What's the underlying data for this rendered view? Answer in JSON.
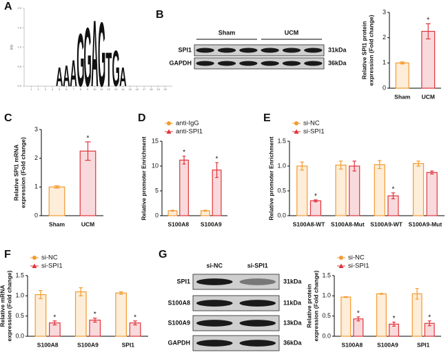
{
  "panel_labels": [
    "A",
    "B",
    "C",
    "D",
    "E",
    "F",
    "G"
  ],
  "blots": [
    {
      "groups": [
        "Sham",
        "UCM"
      ],
      "rows": [
        {
          "name": "SPI1",
          "size": "31kDa"
        },
        {
          "name": "GAPDH",
          "size": "36kDa"
        }
      ]
    },
    {
      "groups": [
        "si-NC",
        "si-SPI1"
      ],
      "rows": [
        {
          "name": "SPI1",
          "size": "31kDa"
        },
        {
          "name": "S100A8",
          "size": "11kDa"
        },
        {
          "name": "S100A9",
          "size": "13kDa"
        },
        {
          "name": "GAPDH",
          "size": "36kDa"
        }
      ]
    }
  ],
  "chart_data": [
    {
      "type": "logo",
      "ylabel": [
        "bits"
      ],
      "x": [
        5,
        6,
        7,
        8,
        9,
        10,
        11,
        12,
        13,
        14
      ],
      "letters": [
        "A",
        "A",
        "A",
        "G",
        "G",
        "A",
        "G",
        "T",
        "G",
        "A"
      ],
      "values": [
        0.5,
        0.55,
        0.7,
        1.4,
        1.55,
        1.75,
        1.7,
        0.9,
        0.95,
        0.5
      ],
      "colors": {
        "A": "#2e9e3b",
        "G": "#f2a81d",
        "T": "#d7272d"
      },
      "xlim": [
        0,
        21
      ],
      "xticks": [
        1,
        2,
        3,
        4,
        5,
        6,
        7,
        8,
        9,
        10,
        11,
        12,
        13,
        14,
        15,
        16,
        17,
        18,
        19,
        20
      ],
      "ylim": [
        0,
        2
      ],
      "yticks": [
        {
          "value": 0,
          "label": "0.0"
        },
        {
          "value": 0.5,
          "label": "0.5"
        },
        {
          "value": 1,
          "label": "1.0"
        },
        {
          "value": 1.5,
          "label": "1.5"
        },
        {
          "value": 2,
          "label": "2.0"
        }
      ]
    },
    {
      "type": "bar",
      "ylabel": [
        "Relative SPI1 protein",
        "expression (Fold change)"
      ],
      "categories": [
        "Sham",
        "UCM"
      ],
      "values": [
        1.0,
        2.25
      ],
      "errors": [
        0.04,
        0.3
      ],
      "annotations": [
        null,
        "*"
      ],
      "colors": [
        "#f39a2e",
        "#e0333b"
      ],
      "ylim": [
        0,
        3
      ],
      "yticks": [
        0,
        1,
        2,
        3
      ]
    },
    {
      "type": "bar",
      "ylabel": [
        "Relative SPI1 mRNA",
        "expression (Fold change)"
      ],
      "categories": [
        "Sham",
        "UCM"
      ],
      "values": [
        1.0,
        2.25
      ],
      "errors": [
        0.04,
        0.32
      ],
      "annotations": [
        null,
        "*"
      ],
      "colors": [
        "#f39a2e",
        "#e0333b"
      ],
      "ylim": [
        0,
        3
      ],
      "yticks": [
        0,
        1,
        2,
        3
      ]
    },
    {
      "type": "bar",
      "ylabel": [
        "Relative promoter Enrichment"
      ],
      "categories": [
        "S100A8",
        "S100A9"
      ],
      "series": [
        {
          "name": "anti-IgG",
          "color": "#f39a2e",
          "values": [
            1.0,
            1.0
          ],
          "errors": [
            0.1,
            0.1
          ],
          "annotations": [
            null,
            null
          ]
        },
        {
          "name": "anti-SPI1",
          "color": "#e0333b",
          "values": [
            11.2,
            9.2
          ],
          "errors": [
            0.8,
            1.5
          ],
          "annotations": [
            "*",
            "*"
          ]
        }
      ],
      "ylim": [
        0,
        15
      ],
      "yticks": [
        0,
        5,
        10,
        15
      ]
    },
    {
      "type": "bar",
      "ylabel": [
        "Relative promoter Enrichment"
      ],
      "categories": [
        "S100A8-WT",
        "S100A8-Mut",
        "S100A9-WT",
        "S100A9-Mut"
      ],
      "series": [
        {
          "name": "si-NC",
          "color": "#f39a2e",
          "values": [
            1.0,
            1.02,
            1.03,
            1.05
          ],
          "errors": [
            0.08,
            0.08,
            0.08,
            0.05
          ],
          "annotations": [
            null,
            null,
            null,
            null
          ]
        },
        {
          "name": "si-SPI1",
          "color": "#e0333b",
          "values": [
            0.3,
            1.0,
            0.4,
            0.87
          ],
          "errors": [
            0.02,
            0.1,
            0.06,
            0.03
          ],
          "annotations": [
            "*",
            null,
            "*",
            null
          ]
        }
      ],
      "ylim": [
        0,
        1.5
      ],
      "yticks": [
        {
          "value": 0,
          "label": "0.0"
        },
        {
          "value": 0.5,
          "label": "0.5"
        },
        {
          "value": 1,
          "label": "1.0"
        },
        {
          "value": 1.5,
          "label": "1.5"
        }
      ]
    },
    {
      "type": "bar",
      "ylabel": [
        "Relative mRNA",
        "expression (Fold change)"
      ],
      "categories": [
        "S100A8",
        "S100A9",
        "SPI1"
      ],
      "series": [
        {
          "name": "si-NC",
          "color": "#f39a2e",
          "values": [
            1.03,
            1.1,
            1.07
          ],
          "errors": [
            0.1,
            0.1,
            0.03
          ],
          "annotations": [
            null,
            null,
            null
          ]
        },
        {
          "name": "si-SPI1",
          "color": "#e0333b",
          "values": [
            0.33,
            0.4,
            0.33
          ],
          "errors": [
            0.05,
            0.05,
            0.05
          ],
          "annotations": [
            "*",
            "*",
            "*"
          ]
        }
      ],
      "ylim": [
        0,
        1.5
      ],
      "yticks": [
        {
          "value": 0,
          "label": "0.0"
        },
        {
          "value": 0.5,
          "label": "0.5"
        },
        {
          "value": 1,
          "label": "1.0"
        },
        {
          "value": 1.5,
          "label": "1.5"
        }
      ]
    },
    {
      "type": "bar",
      "ylabel": [
        "Relative protein",
        "expression (Fold change)"
      ],
      "categories": [
        "S100A8",
        "S100A9",
        "SPI1"
      ],
      "series": [
        {
          "name": "si-NC",
          "color": "#f39a2e",
          "values": [
            0.97,
            1.05,
            1.05
          ],
          "errors": [
            0.01,
            0.01,
            0.13
          ],
          "annotations": [
            null,
            null,
            null
          ]
        },
        {
          "name": "si-SPI1",
          "color": "#e0333b",
          "values": [
            0.43,
            0.3,
            0.32
          ],
          "errors": [
            0.05,
            0.05,
            0.06
          ],
          "annotations": [
            "*",
            "*",
            "*"
          ]
        }
      ],
      "ylim": [
        0,
        1.5
      ],
      "yticks": [
        {
          "value": 0,
          "label": "0.0"
        },
        {
          "value": 0.5,
          "label": "0.5"
        },
        {
          "value": 1,
          "label": "1.0"
        },
        {
          "value": 1.5,
          "label": "1.5"
        }
      ]
    }
  ]
}
